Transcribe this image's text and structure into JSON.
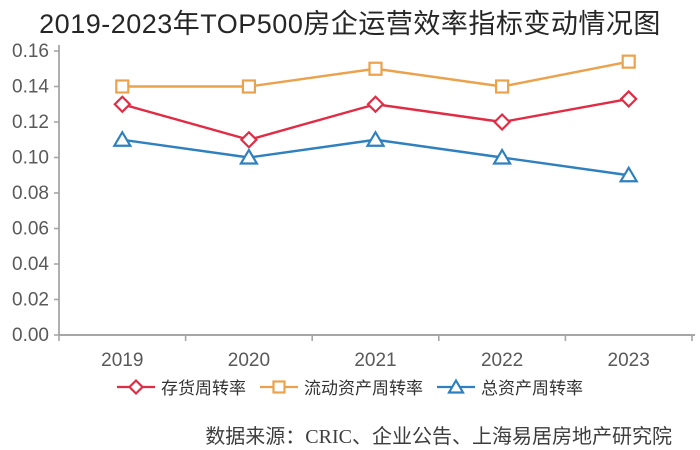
{
  "chart_data": {
    "type": "line",
    "title": "2019-2023年TOP500房企运营效率指标变动情况图",
    "source_note": "数据来源：CRIC、企业公告、上海易居房地产研究院",
    "categories": [
      "2019",
      "2020",
      "2021",
      "2022",
      "2023"
    ],
    "series": [
      {
        "name": "存货周转率",
        "marker": "diamond",
        "color": "#E02C44",
        "values": [
          0.13,
          0.11,
          0.13,
          0.12,
          0.133
        ]
      },
      {
        "name": "流动资产周转率",
        "marker": "square",
        "color": "#EBA24C",
        "values": [
          0.14,
          0.14,
          0.15,
          0.14,
          0.154
        ]
      },
      {
        "name": "总资产周转率",
        "marker": "triangle",
        "color": "#2E80BE",
        "values": [
          0.11,
          0.1,
          0.11,
          0.1,
          0.09
        ]
      }
    ],
    "xlabel": "",
    "ylabel": "",
    "ylim": [
      0,
      0.16
    ],
    "ytick_step": 0.02,
    "ytick_labels": [
      "0.00",
      "0.02",
      "0.04",
      "0.06",
      "0.08",
      "0.10",
      "0.12",
      "0.14",
      "0.16"
    ],
    "grid": false,
    "legend_position": "bottom",
    "axis_color": "#A6A6A6",
    "tick_label_color": "#595959"
  }
}
